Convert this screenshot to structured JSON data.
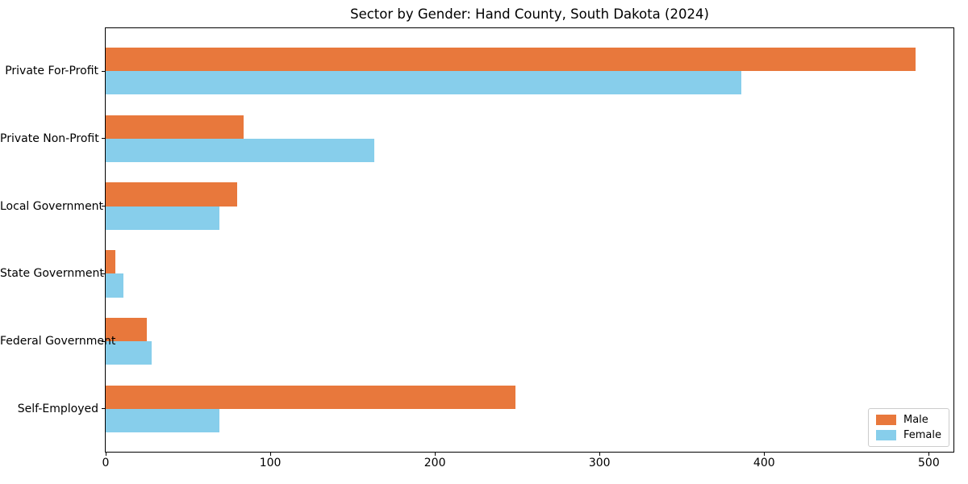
{
  "figure": {
    "title": "Sector by Gender: Hand County, South Dakota (2024)"
  },
  "chart_data": {
    "type": "bar",
    "orientation": "horizontal",
    "title": "Sector by Gender: Hand County, South Dakota (2024)",
    "categories": [
      "Private For-Profit",
      "Private Non-Profit",
      "Local Government",
      "State Government",
      "Federal Government",
      "Self-Employed"
    ],
    "series": [
      {
        "name": "Male",
        "color": "#E8783C",
        "values": [
          492,
          84,
          80,
          6,
          25,
          249
        ]
      },
      {
        "name": "Female",
        "color": "#87CEEB",
        "values": [
          386,
          163,
          69,
          11,
          28,
          69
        ]
      }
    ],
    "xlabel": "",
    "ylabel": "",
    "xlim": [
      0,
      515
    ],
    "x_ticks": [
      0,
      100,
      200,
      300,
      400,
      500
    ],
    "grid": false,
    "legend": {
      "position": "lower right",
      "entries": [
        "Male",
        "Female"
      ]
    },
    "background_color": "#ffffff",
    "axis_color": "#000000",
    "bar_height_ratio": 0.35
  }
}
